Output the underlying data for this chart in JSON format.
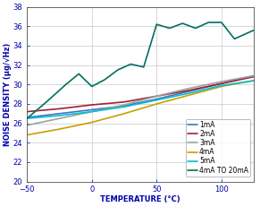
{
  "title": "",
  "xlabel": "TEMPERATURE (°C)",
  "ylabel": "NOISE DENSITY (μg/√Hz)",
  "xlim": [
    -50,
    125
  ],
  "ylim": [
    20,
    38
  ],
  "xticks": [
    -50,
    0,
    50,
    100
  ],
  "yticks": [
    20,
    22,
    24,
    26,
    28,
    30,
    32,
    34,
    36,
    38
  ],
  "background_color": "#ffffff",
  "series": {
    "1mA": {
      "x": [
        -50,
        -25,
        0,
        25,
        50,
        75,
        100,
        125
      ],
      "y": [
        26.6,
        27.0,
        27.4,
        27.8,
        28.5,
        29.3,
        30.1,
        30.9
      ],
      "color": "#4472c4",
      "lw": 1.2
    },
    "2mA": {
      "x": [
        -50,
        -25,
        0,
        25,
        50,
        75,
        100,
        125
      ],
      "y": [
        27.2,
        27.5,
        27.9,
        28.2,
        28.8,
        29.4,
        30.1,
        30.8
      ],
      "color": "#9b2335",
      "lw": 1.2
    },
    "3mA": {
      "x": [
        -50,
        -25,
        0,
        25,
        50,
        75,
        100,
        125
      ],
      "y": [
        25.8,
        26.5,
        27.2,
        27.9,
        28.8,
        29.6,
        30.3,
        30.9
      ],
      "color": "#a0a0a0",
      "lw": 1.2
    },
    "4mA": {
      "x": [
        -50,
        -25,
        0,
        25,
        50,
        75,
        100,
        125
      ],
      "y": [
        24.8,
        25.4,
        26.1,
        27.0,
        28.0,
        28.9,
        29.8,
        30.4
      ],
      "color": "#c8a000",
      "lw": 1.2
    },
    "5mA": {
      "x": [
        -50,
        -25,
        0,
        25,
        50,
        75,
        100,
        125
      ],
      "y": [
        26.5,
        26.8,
        27.2,
        27.7,
        28.4,
        29.1,
        29.9,
        30.4
      ],
      "color": "#00c0d0",
      "lw": 1.2
    },
    "4mA TO 20mA": {
      "x": [
        -50,
        -35,
        -20,
        -10,
        0,
        10,
        20,
        30,
        40,
        50,
        60,
        70,
        80,
        90,
        100,
        110,
        125
      ],
      "y": [
        26.5,
        28.2,
        30.0,
        31.1,
        29.8,
        30.5,
        31.5,
        32.1,
        31.8,
        36.2,
        35.8,
        36.3,
        35.8,
        36.4,
        36.4,
        34.7,
        35.6
      ],
      "color": "#007060",
      "lw": 1.2
    }
  },
  "legend_order": [
    "1mA",
    "2mA",
    "3mA",
    "4mA",
    "5mA",
    "4mA TO 20mA"
  ],
  "figsize": [
    3.1,
    2.31
  ],
  "dpi": 100,
  "font_color": "#0000aa",
  "tick_color": "#0000aa",
  "label_fontsize": 6.0,
  "tick_fontsize": 6.0,
  "legend_fontsize": 5.5,
  "grid_color": "#c8c8c8",
  "grid_lw": 0.5
}
